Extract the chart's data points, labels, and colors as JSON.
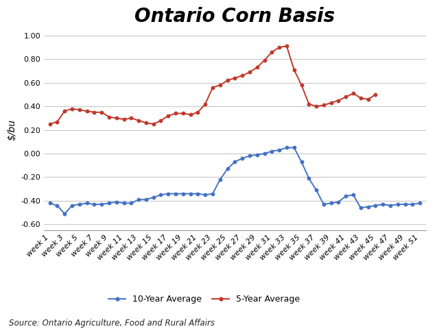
{
  "title": "Ontario Corn Basis",
  "ylabel": "$/bu",
  "source_text": "Source: Ontario Agriculture, Food and Rural Affairs",
  "x_labels": [
    "week 1",
    "week 3",
    "week 5",
    "week 7",
    "week 9",
    "week 11",
    "week 13",
    "week 15",
    "week 17",
    "week 19",
    "week 21",
    "week 23",
    "week 25",
    "week 27",
    "week 29",
    "week 31",
    "week 33",
    "week 35",
    "week 37",
    "week 39",
    "week 41",
    "week 43",
    "week 45",
    "week 47",
    "week 49",
    "week 51"
  ],
  "ylim": [
    -0.65,
    1.05
  ],
  "yticks": [
    -0.6,
    -0.4,
    -0.2,
    0.0,
    0.2,
    0.4,
    0.6,
    0.8,
    1.0
  ],
  "ten_year": [
    -0.42,
    -0.44,
    -0.51,
    -0.44,
    -0.43,
    -0.42,
    -0.43,
    -0.43,
    -0.42,
    -0.41,
    -0.42,
    -0.42,
    -0.39,
    -0.39,
    -0.37,
    -0.35,
    -0.34,
    -0.34,
    -0.34,
    -0.34,
    -0.34,
    -0.35,
    -0.34,
    -0.22,
    -0.13,
    -0.07,
    -0.04,
    -0.02,
    -0.01,
    0.0,
    0.02,
    0.03,
    0.05,
    0.05,
    -0.07,
    -0.21,
    -0.31,
    -0.43,
    -0.42,
    -0.41,
    -0.36,
    -0.35,
    -0.46,
    -0.45,
    -0.44,
    -0.43,
    -0.44,
    -0.43,
    -0.43,
    -0.43,
    -0.42
  ],
  "five_year": [
    0.25,
    0.27,
    0.36,
    0.38,
    0.37,
    0.36,
    0.35,
    0.35,
    0.31,
    0.3,
    0.29,
    0.3,
    0.28,
    0.26,
    0.25,
    0.28,
    0.32,
    0.34,
    0.34,
    0.33,
    0.35,
    0.42,
    0.56,
    0.58,
    0.62,
    0.64,
    0.66,
    0.69,
    0.73,
    0.79,
    0.86,
    0.9,
    0.91,
    0.71,
    0.58,
    0.42,
    0.4,
    0.41,
    0.43,
    0.45,
    0.48,
    0.51,
    0.47,
    0.46,
    0.5
  ],
  "ten_year_color": "#4472C4",
  "five_year_color": "#C0392B",
  "background_color": "#FFFFFF",
  "grid_color": "#C8C8C8",
  "title_fontsize": 20,
  "ylabel_fontsize": 10,
  "tick_fontsize": 8,
  "legend_fontsize": 9,
  "source_fontsize": 8.5
}
